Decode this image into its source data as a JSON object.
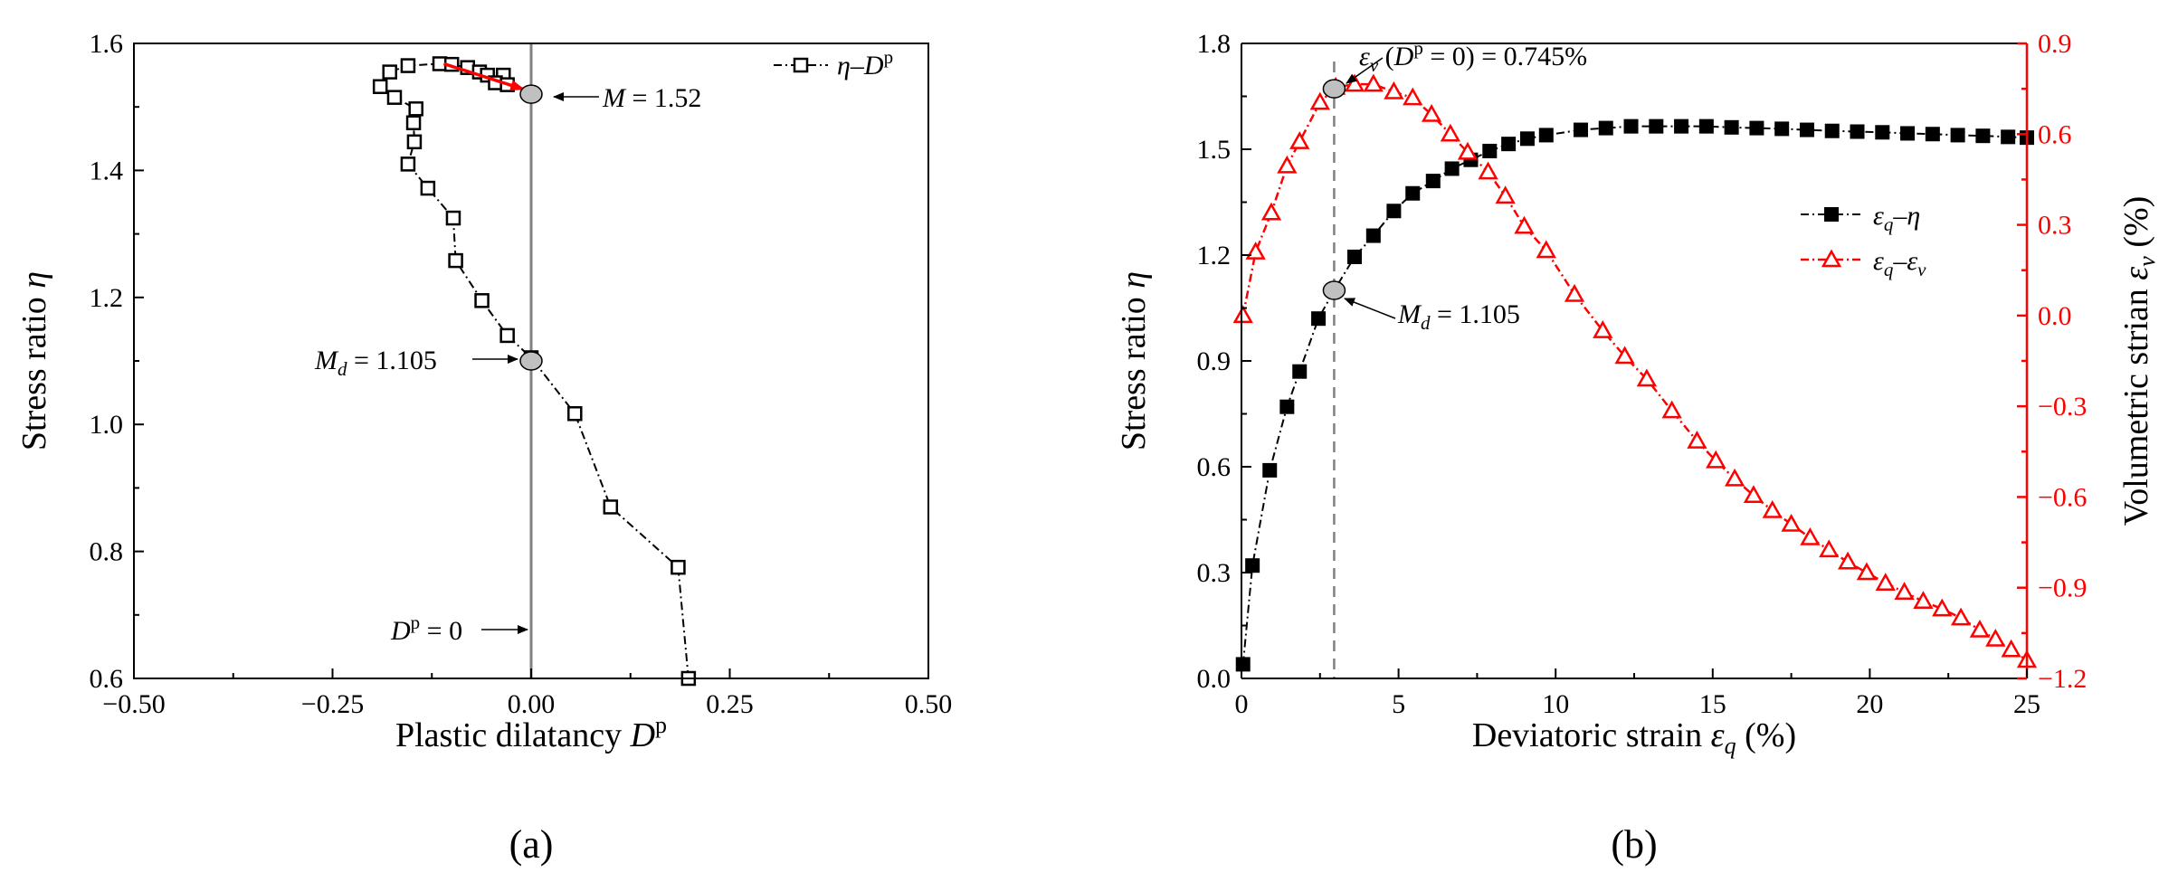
{
  "chart_data": [
    {
      "type": "scatter",
      "panel_label": "(a)",
      "title": "",
      "xlabel": "Plastic dilatancy D^p",
      "xlabel_main": "Plastic dilatancy ",
      "xlabel_sym": "D",
      "xlabel_sup": "p",
      "ylabel": "Stress ratio η",
      "ylabel_main": "Stress ratio ",
      "ylabel_sym": "η",
      "xlim": [
        -0.5,
        0.5
      ],
      "ylim": [
        0.6,
        1.6
      ],
      "xticks": [
        "−0.50",
        "−0.25",
        "0.00",
        "0.25",
        "0.50"
      ],
      "xtick_values": [
        -0.5,
        -0.25,
        0.0,
        0.25,
        0.5
      ],
      "yticks": [
        "0.6",
        "0.8",
        "1.0",
        "1.2",
        "1.4",
        "1.6"
      ],
      "ytick_values": [
        0.6,
        0.8,
        1.0,
        1.2,
        1.4,
        1.6
      ],
      "legend": {
        "location": "top-right",
        "entry_main": "η–D",
        "entry_sup": "p"
      },
      "series": [
        {
          "name": "η–D^p",
          "marker": "open-square",
          "line": "dash-dot",
          "color": "#000000",
          "points": [
            [
              0.198,
              0.6
            ],
            [
              0.185,
              0.775
            ],
            [
              0.1,
              0.87
            ],
            [
              0.055,
              1.017
            ],
            [
              0.0,
              1.105
            ],
            [
              -0.03,
              1.14
            ],
            [
              -0.062,
              1.195
            ],
            [
              -0.095,
              1.258
            ],
            [
              -0.098,
              1.325
            ],
            [
              -0.13,
              1.372
            ],
            [
              -0.155,
              1.41
            ],
            [
              -0.147,
              1.445
            ],
            [
              -0.148,
              1.475
            ],
            [
              -0.145,
              1.497
            ],
            [
              -0.172,
              1.515
            ],
            [
              -0.19,
              1.532
            ],
            [
              -0.178,
              1.555
            ],
            [
              -0.155,
              1.565
            ],
            [
              -0.115,
              1.568
            ],
            [
              -0.1,
              1.567
            ],
            [
              -0.08,
              1.562
            ],
            [
              -0.065,
              1.555
            ],
            [
              -0.055,
              1.55
            ],
            [
              -0.035,
              1.55
            ],
            [
              -0.045,
              1.538
            ],
            [
              -0.03,
              1.535
            ]
          ]
        }
      ],
      "vertical_line": {
        "x": 0.0,
        "color": "#808080"
      },
      "highlight_arrow": {
        "from": [
          -0.11,
          1.568
        ],
        "to": [
          -0.01,
          1.528
        ],
        "color": "#ff0000"
      },
      "annotations": [
        {
          "id": "M",
          "point": [
            0.0,
            1.52
          ],
          "label_main": "M",
          "label_rest": " = 1.52"
        },
        {
          "id": "Md",
          "point": [
            0.0,
            1.1
          ],
          "label_main": "M",
          "label_sub": "d",
          "label_rest": " = 1.105"
        },
        {
          "id": "Dp0",
          "point": [
            0.0,
            0.69
          ],
          "label_main": "D",
          "label_sup": "p",
          "label_rest": " = 0"
        }
      ]
    },
    {
      "type": "line",
      "panel_label": "(b)",
      "title": "",
      "xlabel": "Deviatoric strain ε_q (%)",
      "xlabel_main": "Deviatoric strain ",
      "xlabel_sym": "ε",
      "xlabel_sub": "q",
      "xlabel_unit": " (%)",
      "ylabel": "Stress ratio η",
      "ylabel_main": "Stress ratio ",
      "ylabel_sym": "η",
      "y2label": "Volumetric strian ε_v (%)",
      "y2label_main": "Volumetric strian ",
      "y2label_sym": "ε",
      "y2label_sub": "v",
      "y2label_unit": " (%)",
      "xlim": [
        0,
        25
      ],
      "ylim": [
        0.0,
        1.8
      ],
      "y2lim": [
        -1.2,
        0.9
      ],
      "xticks": [
        "0",
        "5",
        "10",
        "15",
        "20",
        "25"
      ],
      "xtick_values": [
        0,
        5,
        10,
        15,
        20,
        25
      ],
      "yticks": [
        "0.0",
        "0.3",
        "0.6",
        "0.9",
        "1.2",
        "1.5",
        "1.8"
      ],
      "ytick_values": [
        0.0,
        0.3,
        0.6,
        0.9,
        1.2,
        1.5,
        1.8
      ],
      "y2ticks": [
        "−1.2",
        "−0.9",
        "−0.6",
        "−0.3",
        "0.0",
        "0.3",
        "0.6",
        "0.9"
      ],
      "y2tick_values": [
        -1.2,
        -0.9,
        -0.6,
        -0.3,
        0.0,
        0.3,
        0.6,
        0.9
      ],
      "accent_color": "#ff0000",
      "legend": {
        "location": "center-right",
        "entry1": {
          "main": "ε",
          "sub": "q",
          "dash": "–",
          "sym": "η"
        },
        "entry2": {
          "main": "ε",
          "sub": "q",
          "dash": "–",
          "sym": "ε",
          "sym_sub": "v"
        }
      },
      "series": [
        {
          "name": "ε_q–η",
          "axis": "left",
          "marker": "filled-square",
          "line": "dash-dot",
          "color": "#000000",
          "points": [
            [
              0.05,
              0.04
            ],
            [
              0.35,
              0.32
            ],
            [
              0.9,
              0.59
            ],
            [
              1.45,
              0.77
            ],
            [
              1.85,
              0.87
            ],
            [
              2.45,
              1.02
            ],
            [
              2.95,
              1.1
            ],
            [
              3.6,
              1.195
            ],
            [
              4.2,
              1.255
            ],
            [
              4.85,
              1.325
            ],
            [
              5.45,
              1.375
            ],
            [
              6.1,
              1.41
            ],
            [
              6.7,
              1.445
            ],
            [
              7.3,
              1.47
            ],
            [
              7.9,
              1.495
            ],
            [
              8.5,
              1.515
            ],
            [
              9.1,
              1.53
            ],
            [
              9.7,
              1.54
            ],
            [
              10.8,
              1.555
            ],
            [
              11.6,
              1.56
            ],
            [
              12.4,
              1.565
            ],
            [
              13.2,
              1.565
            ],
            [
              14.0,
              1.565
            ],
            [
              14.8,
              1.565
            ],
            [
              15.6,
              1.562
            ],
            [
              16.4,
              1.56
            ],
            [
              17.2,
              1.558
            ],
            [
              18.0,
              1.555
            ],
            [
              18.8,
              1.552
            ],
            [
              19.6,
              1.55
            ],
            [
              20.4,
              1.548
            ],
            [
              21.2,
              1.545
            ],
            [
              22.0,
              1.543
            ],
            [
              22.8,
              1.54
            ],
            [
              23.6,
              1.538
            ],
            [
              24.4,
              1.535
            ],
            [
              25.0,
              1.533
            ]
          ]
        },
        {
          "name": "ε_q–ε_v",
          "axis": "right",
          "marker": "open-triangle",
          "line": "dash-dot",
          "color": "#ff0000",
          "points": [
            [
              0.05,
              0.0
            ],
            [
              0.45,
              0.21
            ],
            [
              0.95,
              0.34
            ],
            [
              1.45,
              0.495
            ],
            [
              1.85,
              0.575
            ],
            [
              2.5,
              0.705
            ],
            [
              3.0,
              0.755
            ],
            [
              3.6,
              0.765
            ],
            [
              4.2,
              0.765
            ],
            [
              4.85,
              0.74
            ],
            [
              5.45,
              0.72
            ],
            [
              6.05,
              0.665
            ],
            [
              6.65,
              0.6
            ],
            [
              7.2,
              0.54
            ],
            [
              7.85,
              0.475
            ],
            [
              8.4,
              0.395
            ],
            [
              9.0,
              0.295
            ],
            [
              9.7,
              0.215
            ],
            [
              10.6,
              0.07
            ],
            [
              11.5,
              -0.05
            ],
            [
              12.2,
              -0.135
            ],
            [
              12.9,
              -0.21
            ],
            [
              13.7,
              -0.315
            ],
            [
              14.5,
              -0.415
            ],
            [
              15.1,
              -0.48
            ],
            [
              15.7,
              -0.54
            ],
            [
              16.3,
              -0.595
            ],
            [
              16.9,
              -0.645
            ],
            [
              17.5,
              -0.69
            ],
            [
              18.1,
              -0.735
            ],
            [
              18.7,
              -0.775
            ],
            [
              19.3,
              -0.815
            ],
            [
              19.9,
              -0.85
            ],
            [
              20.5,
              -0.885
            ],
            [
              21.1,
              -0.915
            ],
            [
              21.7,
              -0.945
            ],
            [
              22.3,
              -0.97
            ],
            [
              22.9,
              -1.0
            ],
            [
              23.5,
              -1.04
            ],
            [
              24.0,
              -1.07
            ],
            [
              24.5,
              -1.105
            ],
            [
              25.0,
              -1.14
            ]
          ]
        }
      ],
      "vertical_line": {
        "x": 2.95,
        "style": "dashed",
        "color": "#808080"
      },
      "annotations": [
        {
          "id": "ev",
          "axis": "right",
          "point": [
            2.95,
            0.75
          ],
          "label_sym": "ε",
          "label_sub": "v",
          "label_open": " (",
          "label_main": "D",
          "label_sup": "p",
          "label_rest": " = 0) = 0.745%"
        },
        {
          "id": "Md",
          "axis": "left",
          "point": [
            2.95,
            1.1
          ],
          "label_main": "M",
          "label_sub": "d",
          "label_rest": " = 1.105"
        }
      ]
    }
  ]
}
